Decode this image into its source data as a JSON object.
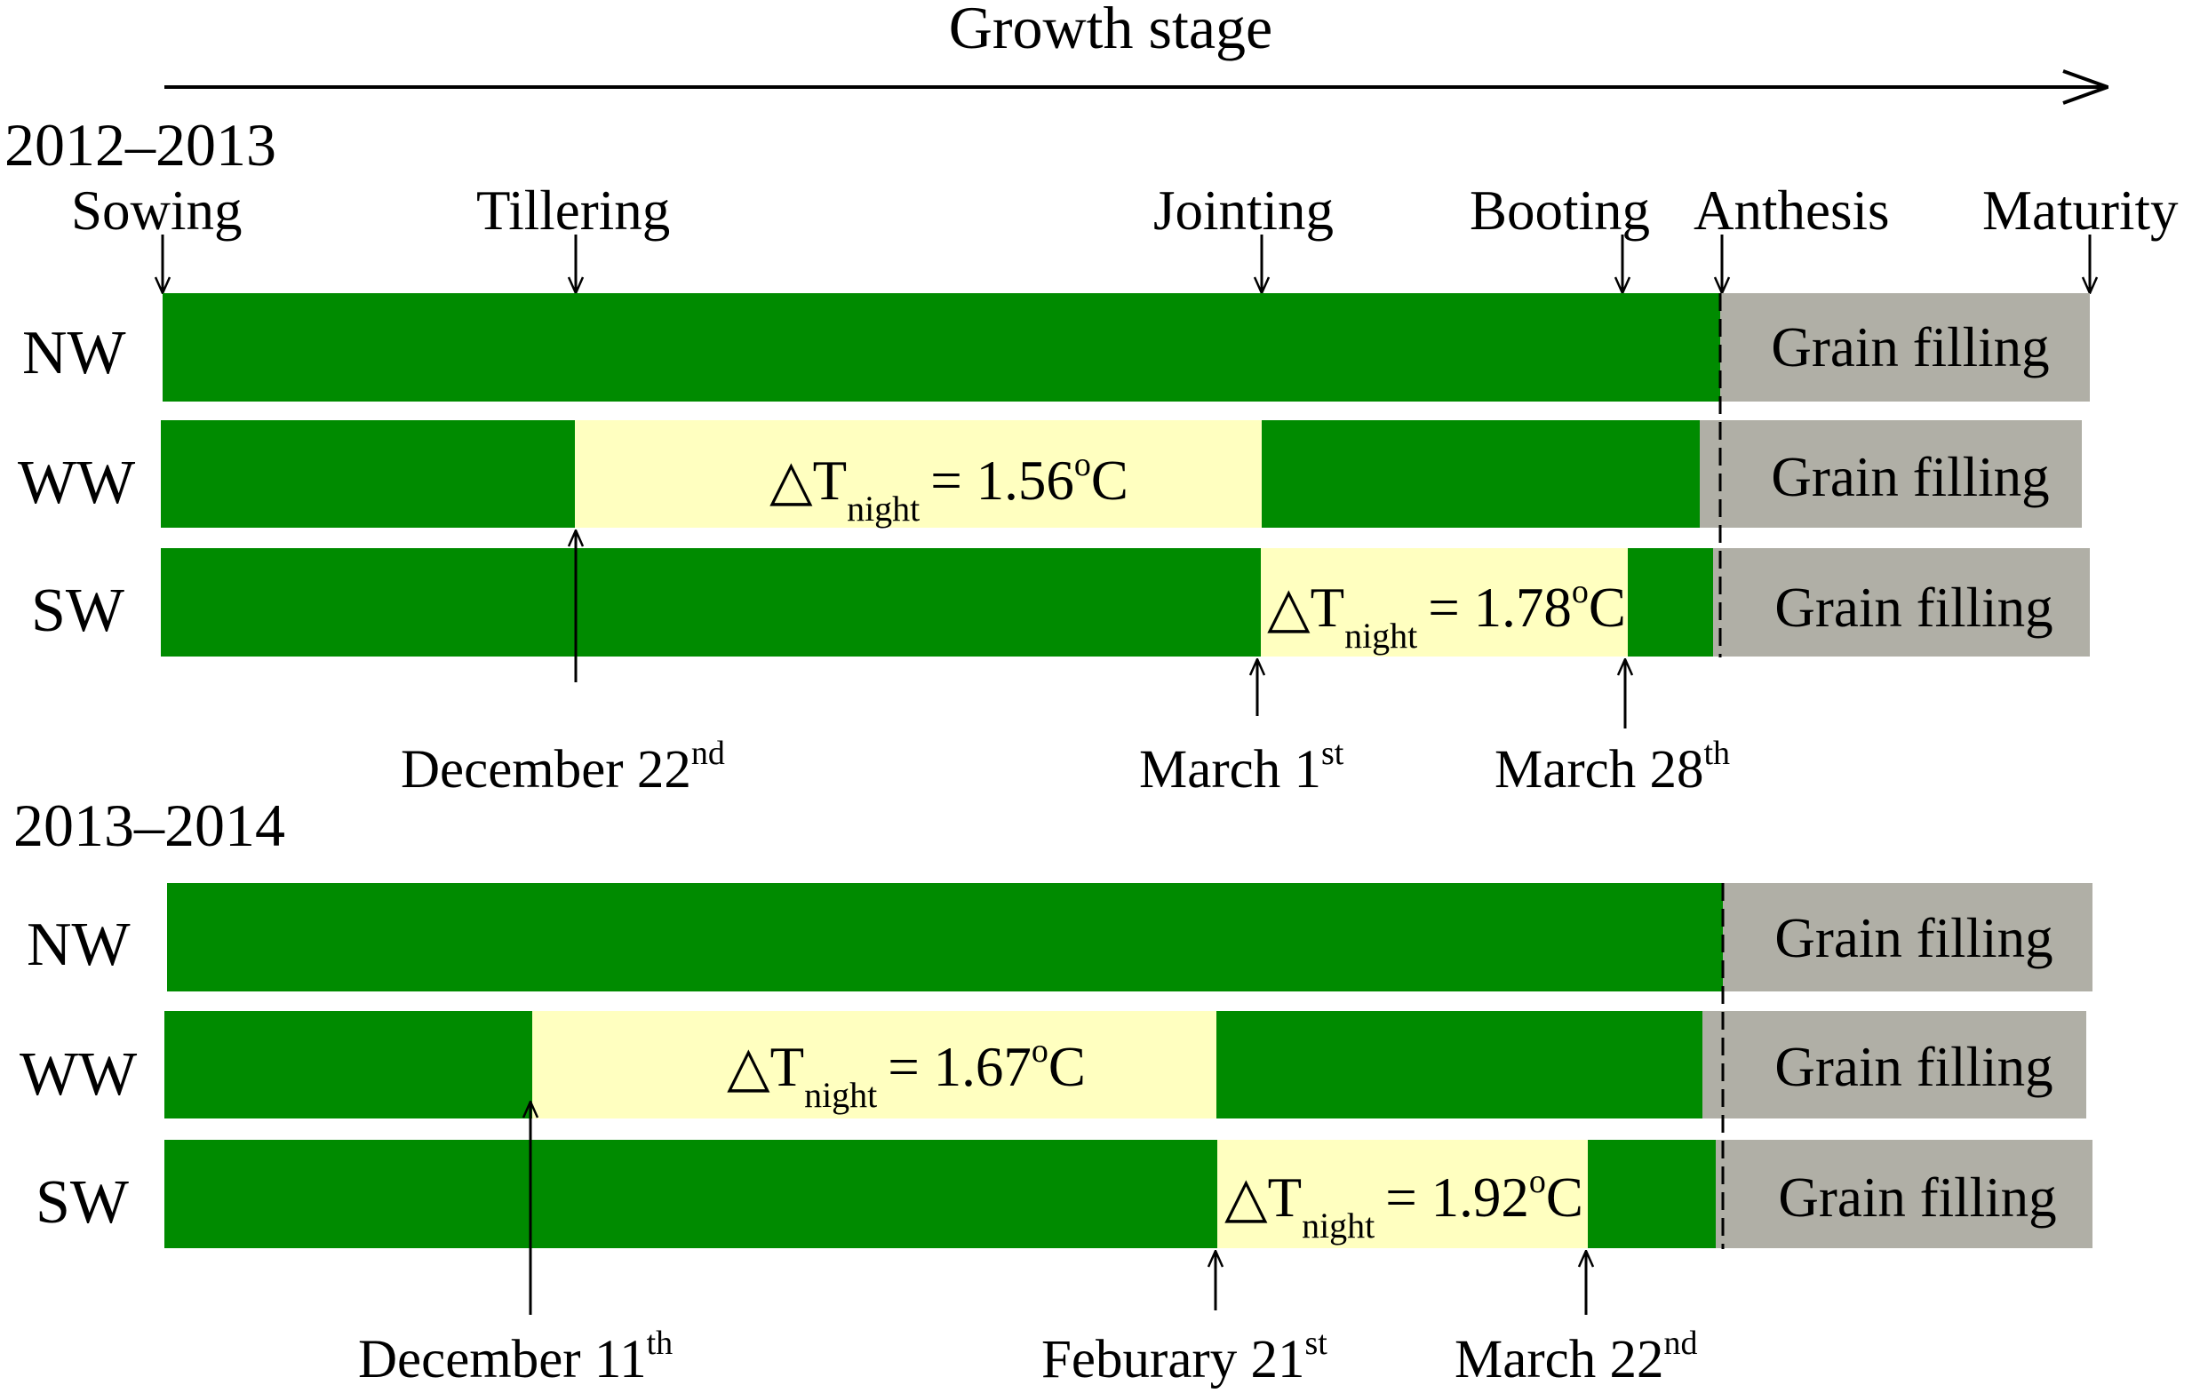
{
  "title": "Growth stage",
  "colors": {
    "vegetative": "#008b00",
    "warming": "#ffffc0",
    "grain_filling": "#b0afa6",
    "ink": "#000000"
  },
  "stages": [
    "Sowing",
    "Tillering",
    "Jointing",
    "Booting",
    "Anthesis",
    "Maturity"
  ],
  "seasons": [
    {
      "label": "2012–2013",
      "rows": [
        {
          "name": "NW",
          "warming": null,
          "grain_text": "Grain filling"
        },
        {
          "name": "WW",
          "warming": {
            "text": "△T",
            "sub": "night",
            "value": "= 1.56",
            "sup": "o",
            "unit": "C"
          },
          "grain_text": "Grain filling"
        },
        {
          "name": "SW",
          "warming": {
            "text": "△T",
            "sub": "night",
            "value": "= 1.78",
            "sup": "o",
            "unit": "C"
          },
          "grain_text": "Grain filling"
        }
      ],
      "dates": [
        {
          "text": "December 22",
          "sup": "nd"
        },
        {
          "text": "March 1",
          "sup": "st"
        },
        {
          "text": "March 28",
          "sup": "th"
        }
      ]
    },
    {
      "label": "2013–2014",
      "rows": [
        {
          "name": "NW",
          "warming": null,
          "grain_text": "Grain filling"
        },
        {
          "name": "WW",
          "warming": {
            "text": "△T",
            "sub": "night",
            "value": "= 1.67",
            "sup": "o",
            "unit": "C"
          },
          "grain_text": "Grain filling"
        },
        {
          "name": "SW",
          "warming": {
            "text": "△T",
            "sub": "night",
            "value": "= 1.92",
            "sup": "o",
            "unit": "C"
          },
          "grain_text": "Grain filling"
        }
      ],
      "dates": [
        {
          "text": "December 11",
          "sup": "th"
        },
        {
          "text": "Feburary 21",
          "sup": "st"
        },
        {
          "text": "March 22",
          "sup": "nd"
        }
      ]
    }
  ]
}
